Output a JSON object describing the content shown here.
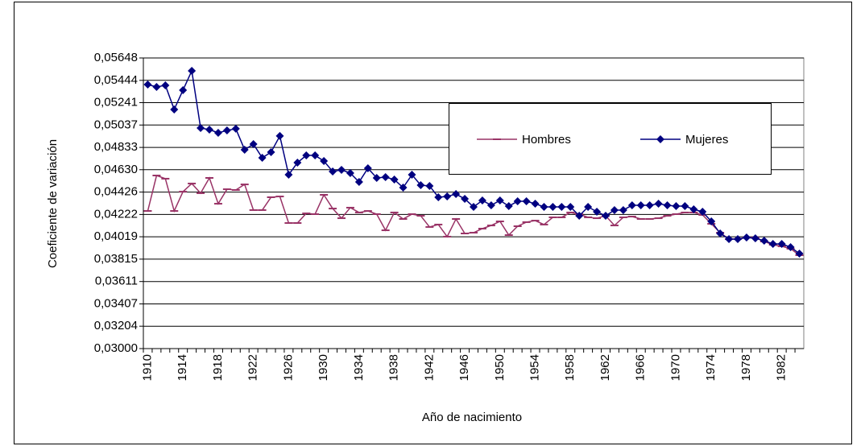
{
  "chart_data": {
    "type": "line",
    "y_label": "Coeficiente de variación",
    "x_label": "Año de nacimiento",
    "categories": [
      "1910",
      null,
      null,
      null,
      "1914",
      null,
      null,
      null,
      "1918",
      null,
      null,
      null,
      "1922",
      null,
      null,
      null,
      "1926",
      null,
      null,
      null,
      "1930",
      null,
      null,
      null,
      "1934",
      null,
      null,
      null,
      "1938",
      null,
      null,
      null,
      "1942",
      null,
      null,
      null,
      "1946",
      null,
      null,
      null,
      "1950",
      null,
      null,
      null,
      "1954",
      null,
      null,
      null,
      "1958",
      null,
      null,
      null,
      "1962",
      null,
      null,
      null,
      "1966",
      null,
      null,
      null,
      "1970",
      null,
      null,
      null,
      "1974",
      null,
      null,
      null,
      "1978",
      null,
      null,
      null,
      "1982",
      null,
      null
    ],
    "series": [
      {
        "name": "Hombres",
        "color": "#993366",
        "marker": "dash",
        "values": [
          0.04254,
          0.04577,
          0.04548,
          0.04254,
          0.0443,
          0.04504,
          0.04416,
          0.04555,
          0.0432,
          0.04452,
          0.04445,
          0.04496,
          0.04262,
          0.04262,
          0.04379,
          0.04386,
          0.04144,
          0.04144,
          0.04232,
          0.04225,
          0.04401,
          0.04276,
          0.04188,
          0.04284,
          0.0424,
          0.04254,
          0.04225,
          0.04078,
          0.0424,
          0.04181,
          0.04225,
          0.0421,
          0.04108,
          0.0413,
          0.0402,
          0.04181,
          0.04049,
          0.04056,
          0.04093,
          0.04122,
          0.04159,
          0.04034,
          0.04115,
          0.04152,
          0.04166,
          0.0413,
          0.04196,
          0.04196,
          0.0424,
          0.04225,
          0.04196,
          0.04188,
          0.0421,
          0.04122,
          0.04196,
          0.04203,
          0.04181,
          0.04181,
          0.04188,
          0.0421,
          0.04225,
          0.0424,
          0.0424,
          0.04218,
          0.04137,
          0.04056,
          0.03998,
          0.03998,
          0.04012,
          0.04012,
          0.03976,
          0.03946,
          0.03932,
          0.0391,
          0.03851
        ]
      },
      {
        "name": "Mujeres",
        "color": "#000080",
        "marker": "diamond",
        "values": [
          0.05406,
          0.05384,
          0.05399,
          0.05179,
          0.05355,
          0.05531,
          0.0501,
          0.04995,
          0.04966,
          0.04988,
          0.05003,
          0.04812,
          0.04863,
          0.04738,
          0.0479,
          0.04937,
          0.04584,
          0.04694,
          0.0476,
          0.0476,
          0.04709,
          0.04614,
          0.04628,
          0.04599,
          0.04518,
          0.04643,
          0.04555,
          0.04562,
          0.0454,
          0.04467,
          0.04584,
          0.04489,
          0.04482,
          0.04379,
          0.04386,
          0.04408,
          0.04364,
          0.04291,
          0.0435,
          0.04306,
          0.0435,
          0.04298,
          0.04342,
          0.04342,
          0.0432,
          0.04291,
          0.04291,
          0.04291,
          0.04291,
          0.0421,
          0.04291,
          0.04247,
          0.0421,
          0.04262,
          0.04262,
          0.04306,
          0.04306,
          0.04306,
          0.0432,
          0.04306,
          0.04298,
          0.04298,
          0.04269,
          0.04247,
          0.04159,
          0.04049,
          0.03998,
          0.03998,
          0.04012,
          0.04005,
          0.03983,
          0.03954,
          0.03954,
          0.03924,
          0.03866
        ]
      }
    ],
    "ylim": [
      0.03,
      0.05648
    ],
    "yticks": [
      {
        "value": 0.03,
        "label": "0,03000"
      },
      {
        "value": 0.03204,
        "label": "0,03204"
      },
      {
        "value": 0.03407,
        "label": "0,03407"
      },
      {
        "value": 0.03611,
        "label": "0,03611"
      },
      {
        "value": 0.03815,
        "label": "0,03815"
      },
      {
        "value": 0.04019,
        "label": "0,04019"
      },
      {
        "value": 0.04222,
        "label": "0,04222"
      },
      {
        "value": 0.04426,
        "label": "0,04426"
      },
      {
        "value": 0.0463,
        "label": "0,04630"
      },
      {
        "value": 0.04833,
        "label": "0,04833"
      },
      {
        "value": 0.05037,
        "label": "0,05037"
      },
      {
        "value": 0.05241,
        "label": "0,05241"
      },
      {
        "value": 0.05444,
        "label": "0,05444"
      },
      {
        "value": 0.05648,
        "label": "0,05648"
      }
    ],
    "grid": true
  }
}
